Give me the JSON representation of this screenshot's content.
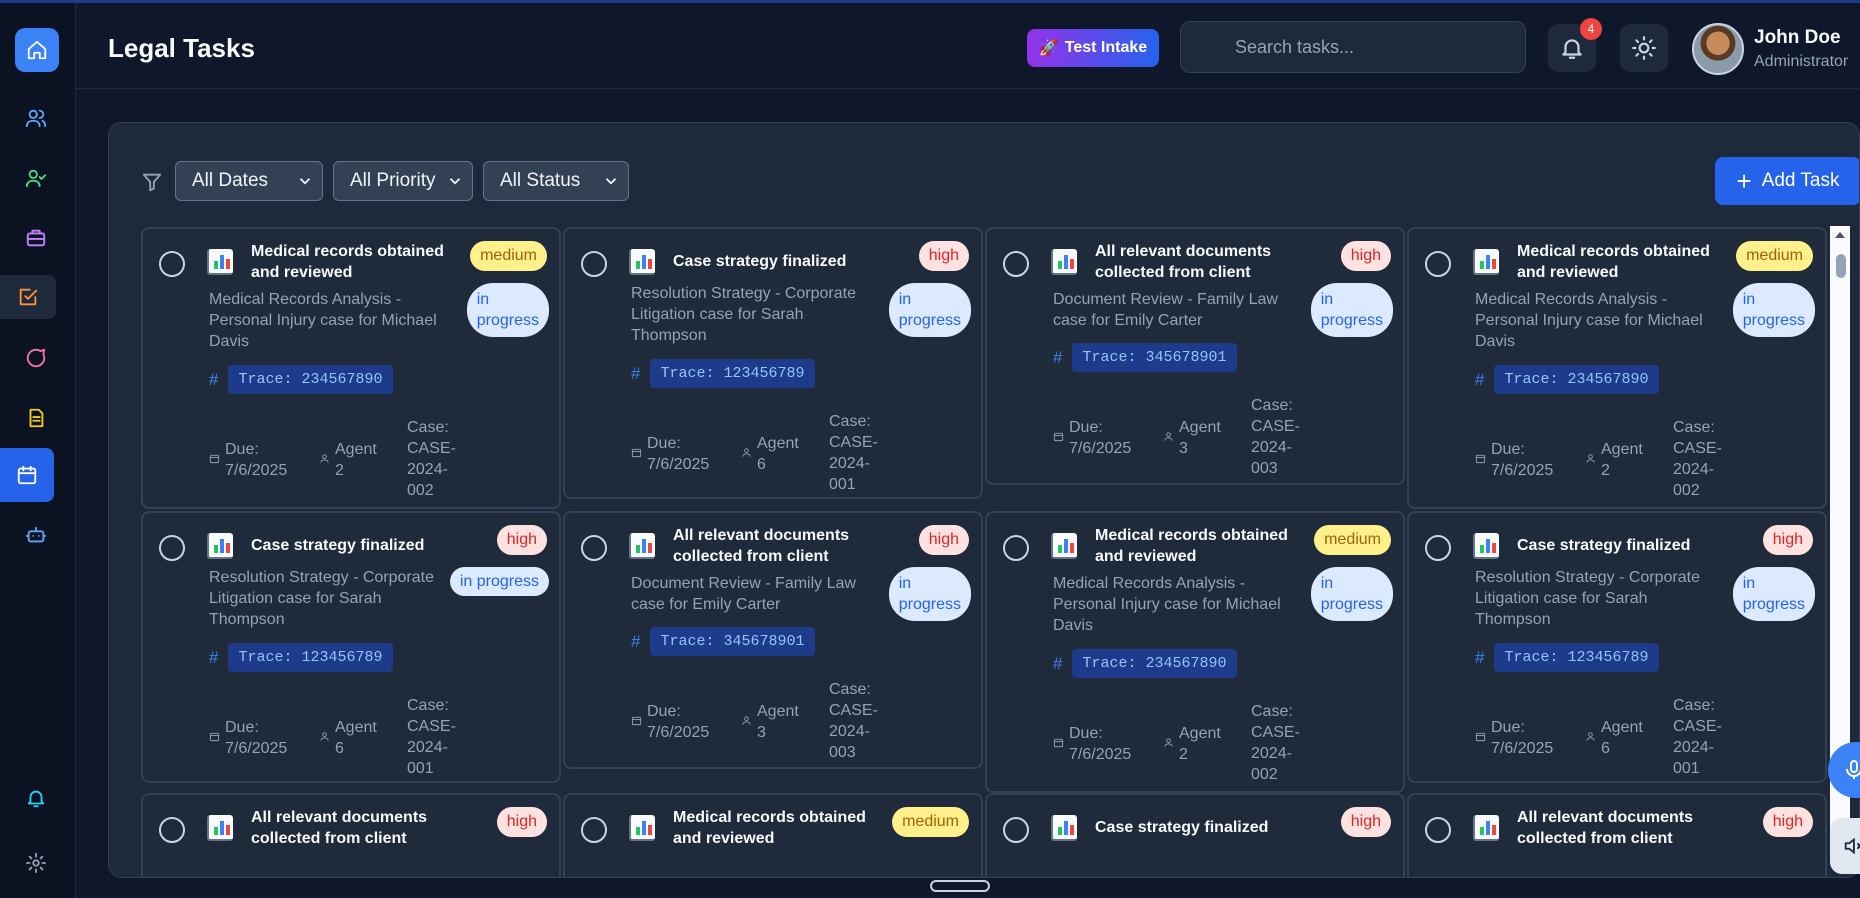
{
  "header": {
    "title": "Legal Tasks",
    "test_intake_label": "Test Intake",
    "search_placeholder": "Search tasks...",
    "notification_count": "4",
    "user_name": "John Doe",
    "user_role": "Administrator"
  },
  "sidebar": {
    "items": [
      "home-icon",
      "users-icon",
      "user-check-icon",
      "briefcase-icon",
      "tasks-icon",
      "chat-icon",
      "document-icon",
      "calendar-icon",
      "bot-icon",
      "bell-icon",
      "settings-icon"
    ]
  },
  "filters": {
    "dates": "All Dates",
    "priority": "All Priority",
    "status": "All Status",
    "add_task_label": "Add Task"
  },
  "tasks": [
    {
      "title_1": "Medical records obtained",
      "title_2": "and reviewed",
      "priority": "medium",
      "status_1": "in",
      "status_2": "progress",
      "desc": "Medical Records Analysis - Personal Injury case for Michael Davis",
      "trace": "Trace: 234567890",
      "due_label": "Due:",
      "due": "7/6/2025",
      "agent_label": "Agent",
      "agent": "2",
      "case_label": "Case:",
      "case": "CASE-2024-002"
    },
    {
      "title_1": "Case strategy finalized",
      "title_2": "",
      "priority": "high",
      "status_1": "in",
      "status_2": "progress",
      "desc": "Resolution Strategy - Corporate Litigation case for Sarah Thompson",
      "trace": "Trace: 123456789",
      "due_label": "Due:",
      "due": "7/6/2025",
      "agent_label": "Agent",
      "agent": "6",
      "case_label": "Case:",
      "case": "CASE-2024-001"
    },
    {
      "title_1": "All relevant documents",
      "title_2": "collected from client",
      "priority": "high",
      "status_1": "in",
      "status_2": "progress",
      "desc": "Document Review - Family Law case for Emily Carter",
      "trace": "Trace: 345678901",
      "due_label": "Due:",
      "due": "7/6/2025",
      "agent_label": "Agent",
      "agent": "3",
      "case_label": "Case:",
      "case": "CASE-2024-003"
    },
    {
      "title_1": "Medical records obtained",
      "title_2": "and reviewed",
      "priority": "medium",
      "status_1": "in",
      "status_2": "progress",
      "desc": "Medical Records Analysis - Personal Injury case for Michael Davis",
      "trace": "Trace: 234567890",
      "due_label": "Due:",
      "due": "7/6/2025",
      "agent_label": "Agent",
      "agent": "2",
      "case_label": "Case:",
      "case": "CASE-2024-002"
    },
    {
      "title_1": "Case strategy finalized",
      "title_2": "",
      "priority": "high",
      "status_1": "in progress",
      "status_2": "",
      "desc": "Resolution Strategy - Corporate Litigation case for Sarah Thompson",
      "trace": "Trace: 123456789",
      "due_label": "Due:",
      "due": "7/6/2025",
      "agent_label": "Agent",
      "agent": "6",
      "case_label": "Case:",
      "case": "CASE-2024-001"
    },
    {
      "title_1": "All relevant documents",
      "title_2": "collected from client",
      "priority": "high",
      "status_1": "in",
      "status_2": "progress",
      "desc": "Document Review - Family Law case for Emily Carter",
      "trace": "Trace: 345678901",
      "due_label": "Due:",
      "due": "7/6/2025",
      "agent_label": "Agent",
      "agent": "3",
      "case_label": "Case:",
      "case": "CASE-2024-003"
    },
    {
      "title_1": "Medical records obtained",
      "title_2": "and reviewed",
      "priority": "medium",
      "status_1": "in",
      "status_2": "progress",
      "desc": "Medical Records Analysis - Personal Injury case for Michael Davis",
      "trace": "Trace: 234567890",
      "due_label": "Due:",
      "due": "7/6/2025",
      "agent_label": "Agent",
      "agent": "2",
      "case_label": "Case:",
      "case": "CASE-2024-002"
    },
    {
      "title_1": "Case strategy finalized",
      "title_2": "",
      "priority": "high",
      "status_1": "in",
      "status_2": "progress",
      "desc": "Resolution Strategy - Corporate Litigation case for Sarah Thompson",
      "trace": "Trace: 123456789",
      "due_label": "Due:",
      "due": "7/6/2025",
      "agent_label": "Agent",
      "agent": "6",
      "case_label": "Case:",
      "case": "CASE-2024-001"
    },
    {
      "title_1": "All relevant documents",
      "title_2": "collected from client",
      "priority": "high"
    },
    {
      "title_1": "Medical records obtained",
      "title_2": "and reviewed",
      "priority": "medium"
    },
    {
      "title_1": "Case strategy finalized",
      "title_2": "",
      "priority": "high"
    },
    {
      "title_1": "All relevant documents",
      "title_2": "collected from client",
      "priority": "high"
    }
  ],
  "colors": {
    "accent": "#2563eb",
    "priority_medium_bg": "#fef08a",
    "priority_high_bg": "#fee2e2",
    "status_bg": "#dbeafe"
  }
}
